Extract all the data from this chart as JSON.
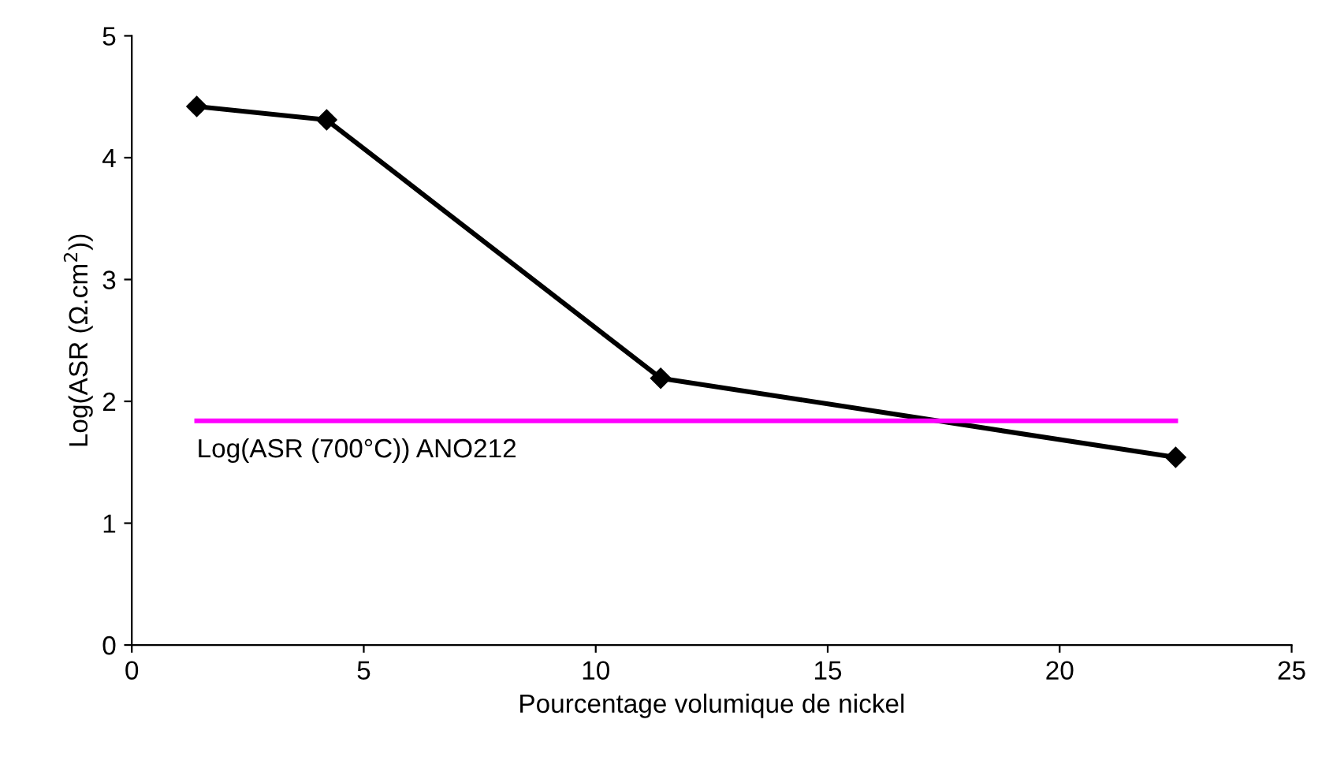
{
  "chart_data": {
    "type": "line",
    "xlabel": "Pourcentage volumique de nickel",
    "ylabel": "Log(ASR (Ω.cm$^{2}$))",
    "xlim": [
      0,
      25
    ],
    "xticks": [
      0,
      5,
      10,
      15,
      20,
      25
    ],
    "ylim": [
      0,
      5
    ],
    "yticks": [
      0,
      1,
      2,
      3,
      4,
      5
    ],
    "grid": false,
    "legend": false,
    "series": [
      {
        "color": "#000000",
        "marker": "diamond",
        "x": [
          1.4,
          4.2,
          11.4,
          22.5
        ],
        "values": [
          4.42,
          4.31,
          2.19,
          1.54
        ]
      },
      {
        "name": "Log(ASR (700°C)) ANO212",
        "color": "#ff00ff",
        "marker": "none",
        "x": [
          1.4,
          22.5
        ],
        "values": [
          1.84,
          1.84
        ]
      }
    ]
  }
}
